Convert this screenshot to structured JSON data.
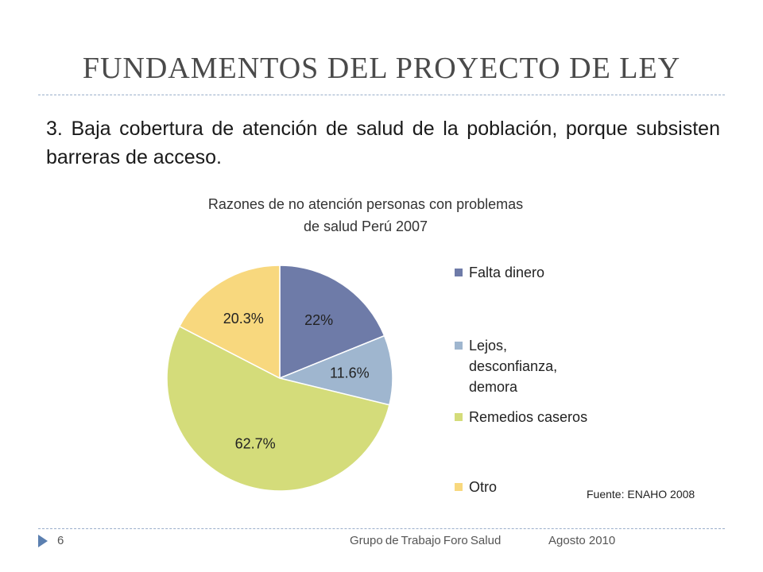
{
  "slide": {
    "title": "FUNDAMENTOS DEL PROYECTO DE LEY",
    "bullet_number": "3.",
    "bullet_text": "Baja cobertura de atención de salud de la población, porque subsisten barreras de acceso.",
    "source": "Fuente: ENAHO 2008",
    "page_number": "6",
    "footer_text": "Grupo de Trabajo Foro Salud",
    "footer_date": "Agosto 2010"
  },
  "chart_data": {
    "type": "pie",
    "title_line1": "Razones de no atención personas con problemas",
    "title_line2": "de salud Perú 2007",
    "legend_position": "right",
    "categories": [
      "Falta dinero",
      "Lejos, desconfianza, demora",
      "Remedios caseros",
      "Otro"
    ],
    "legend_lines": [
      [
        "Falta dinero"
      ],
      [
        "Lejos,",
        "desconfianza,",
        "demora"
      ],
      [
        "Remedios caseros"
      ],
      [
        "Otro"
      ]
    ],
    "values": [
      22,
      11.6,
      62.7,
      20.3
    ],
    "labels": [
      "22%",
      "11.6%",
      "62.7%",
      "20.3%"
    ],
    "colors": [
      "#6e7ba8",
      "#9fb6cf",
      "#d4dc7a",
      "#f8d87e"
    ]
  }
}
